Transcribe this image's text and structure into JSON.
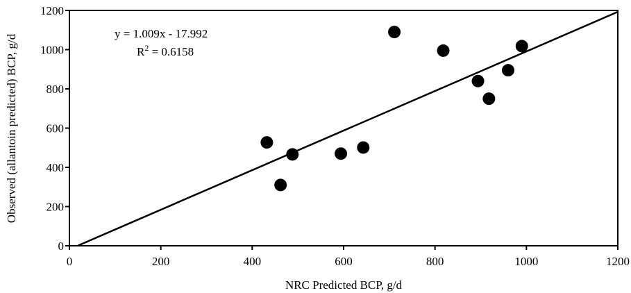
{
  "chart_data": {
    "type": "scatter",
    "title": "",
    "xlabel": "NRC Predicted BCP, g/d",
    "ylabel": "Observed (allantoin predicted) BCP, g/d",
    "xlim": [
      0,
      1200
    ],
    "ylim": [
      0,
      1200
    ],
    "xticks": [
      0,
      200,
      400,
      600,
      800,
      1000,
      1200
    ],
    "yticks": [
      0,
      200,
      400,
      600,
      800,
      1000,
      1200
    ],
    "xtick_labels": [
      "0",
      "200",
      "400",
      "600",
      "800",
      "1000",
      "1200"
    ],
    "ytick_labels": [
      "0",
      "200",
      "400",
      "600",
      "800",
      "1000",
      "1200"
    ],
    "grid": false,
    "legend": "none",
    "points": [
      {
        "x": 432,
        "y": 527
      },
      {
        "x": 462,
        "y": 310
      },
      {
        "x": 488,
        "y": 466
      },
      {
        "x": 594,
        "y": 470
      },
      {
        "x": 643,
        "y": 501
      },
      {
        "x": 711,
        "y": 1090
      },
      {
        "x": 818,
        "y": 995
      },
      {
        "x": 894,
        "y": 840
      },
      {
        "x": 918,
        "y": 750
      },
      {
        "x": 960,
        "y": 895
      },
      {
        "x": 990,
        "y": 1018
      }
    ],
    "trendline": {
      "slope": 1.009,
      "intercept": -17.992
    },
    "equation": {
      "line": "y = 1.009x - 17.992",
      "r2_prefix": "R",
      "r2_sup": "2",
      "r2_value": " = 0.6158"
    },
    "colors": {
      "marker": "#000000",
      "line": "#000000",
      "axis": "#000000"
    }
  }
}
